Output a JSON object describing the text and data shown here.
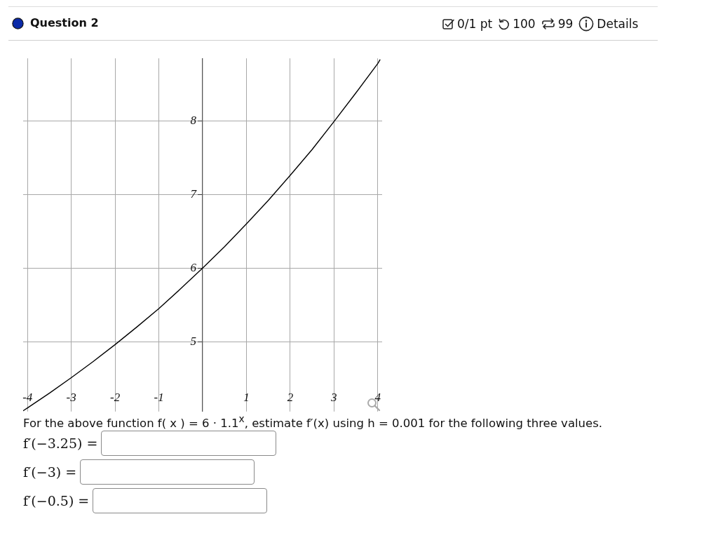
{
  "chart_data": {
    "type": "line",
    "title": "Question 2",
    "x": [
      -4.1,
      -4,
      -3.5,
      -3,
      -2.5,
      -2,
      -1.5,
      -1,
      -0.5,
      0,
      0.5,
      1,
      1.5,
      2,
      2.5,
      3,
      3.5,
      4,
      4.05
    ],
    "values": [
      4.06,
      4.1,
      4.3,
      4.51,
      4.73,
      4.96,
      5.2,
      5.45,
      5.72,
      6,
      6.29,
      6.6,
      6.92,
      7.26,
      7.61,
      7.99,
      8.38,
      8.78,
      8.83
    ],
    "color": "#000000",
    "xlim": [
      -4.1,
      4.1
    ],
    "ylim": [
      4.05,
      8.85
    ],
    "xticks": [
      -4,
      -3,
      -2,
      -1,
      1,
      2,
      3,
      4
    ],
    "yticks": [
      5,
      6,
      7,
      8
    ],
    "grid": true,
    "marker": "none",
    "line_style": "solid",
    "annotations": [
      "0/1 pt",
      "100",
      "99",
      "Details",
      "For the above function f( x ) = 6 · 1.1$^{x}$, estimate f′(x) using h = 0.001 for the following three values.",
      "f′(−3.25) =",
      "f′(−3) =",
      "f′(−0.5) ="
    ]
  }
}
